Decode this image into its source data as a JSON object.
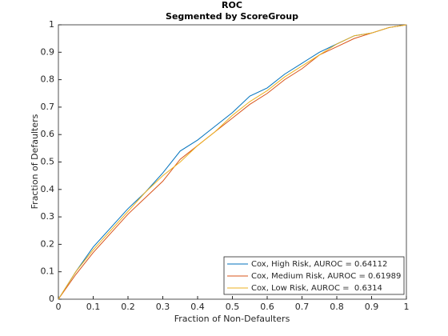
{
  "chart_data": {
    "type": "line",
    "title": "ROC",
    "subtitle": "Segmented by ScoreGroup",
    "x_label": "Fraction of Non-Defaulters",
    "y_label": "Fraction of Defaulters",
    "x": [
      0,
      0.05,
      0.1,
      0.15,
      0.2,
      0.25,
      0.3,
      0.35,
      0.4,
      0.45,
      0.5,
      0.55,
      0.6,
      0.65,
      0.7,
      0.75,
      0.8,
      0.85,
      0.9,
      0.95,
      1
    ],
    "series": [
      {
        "name": "Cox, High Risk, AUROC = 0.64112",
        "color": "#0072bd",
        "values": [
          0,
          0.1,
          0.19,
          0.26,
          0.33,
          0.39,
          0.46,
          0.54,
          0.58,
          0.63,
          0.68,
          0.74,
          0.77,
          0.82,
          0.86,
          0.9,
          0.93,
          0.96,
          0.97,
          0.99,
          1
        ]
      },
      {
        "name": "Cox, Medium Risk, AUROC = 0.61989",
        "color": "#d95319",
        "values": [
          0,
          0.09,
          0.17,
          0.24,
          0.31,
          0.37,
          0.43,
          0.51,
          0.56,
          0.61,
          0.66,
          0.71,
          0.75,
          0.8,
          0.84,
          0.89,
          0.92,
          0.95,
          0.97,
          0.99,
          1
        ]
      },
      {
        "name": "Cox, Low Risk, AUROC =  0.6314",
        "color": "#edb120",
        "values": [
          0,
          0.1,
          0.18,
          0.25,
          0.32,
          0.39,
          0.45,
          0.5,
          0.56,
          0.61,
          0.67,
          0.72,
          0.76,
          0.81,
          0.85,
          0.89,
          0.93,
          0.96,
          0.97,
          0.99,
          1
        ]
      }
    ],
    "xlim": [
      0,
      1
    ],
    "xticks": [
      0,
      0.1,
      0.2,
      0.3,
      0.4,
      0.5,
      0.6,
      0.7,
      0.8,
      0.9,
      1
    ],
    "ylim": [
      0,
      1
    ],
    "yticks": [
      0,
      0.1,
      0.2,
      0.3,
      0.4,
      0.5,
      0.6,
      0.7,
      0.8,
      0.9,
      1
    ],
    "grid": false,
    "legend_position": "lower-right"
  }
}
